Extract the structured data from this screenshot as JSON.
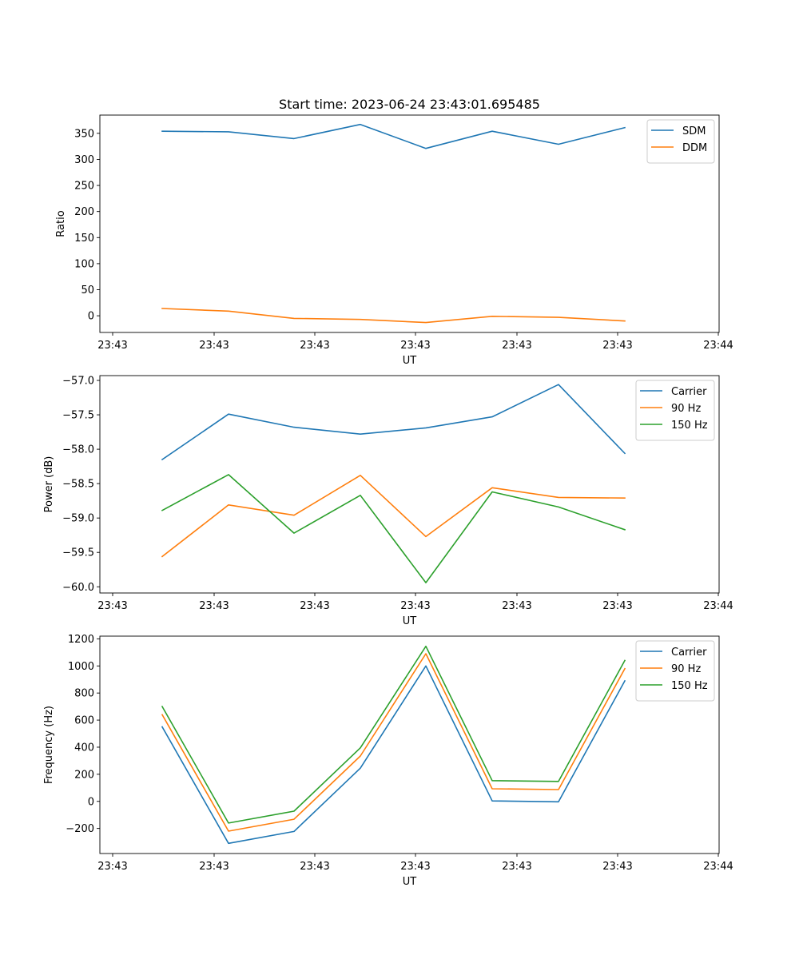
{
  "figure": {
    "title": "Start time: 2023-06-24 23:43:01.695485"
  },
  "chart_data": [
    {
      "type": "line",
      "title": "Start time: 2023-06-24 23:43:01.695485",
      "xlabel": "UT",
      "ylabel": "Ratio",
      "x_tick_labels": [
        "23:43",
        "23:43",
        "23:43",
        "23:43",
        "23:43",
        "23:43",
        "23:43"
      ],
      "x_tick_last_label": "23:44",
      "ylim": [
        -32,
        385
      ],
      "yticks": [
        0,
        50,
        100,
        150,
        200,
        250,
        300,
        350
      ],
      "y_tick_labels": [
        "0",
        "50",
        "100",
        "150",
        "200",
        "250",
        "300",
        "350"
      ],
      "legend_position": "upper-right",
      "series": [
        {
          "name": "SDM",
          "color": "#1f77b4",
          "values": [
            354,
            353,
            340,
            367,
            321,
            354,
            329,
            361
          ]
        },
        {
          "name": "DDM",
          "color": "#ff7f0e",
          "values": [
            14,
            9,
            -5,
            -7,
            -13,
            -1,
            -3,
            -10
          ]
        }
      ]
    },
    {
      "type": "line",
      "title": "",
      "xlabel": "UT",
      "ylabel": "Power (dB)",
      "x_tick_labels": [
        "23:43",
        "23:43",
        "23:43",
        "23:43",
        "23:43",
        "23:43",
        "23:43"
      ],
      "x_tick_last_label": "23:44",
      "ylim": [
        -60.09,
        -56.93
      ],
      "yticks": [
        -60.0,
        -59.5,
        -59.0,
        -58.5,
        -58.0,
        -57.5,
        -57.0
      ],
      "y_tick_labels": [
        "−60.0",
        "−59.5",
        "−59.0",
        "−58.5",
        "−58.0",
        "−57.5",
        "−57.0"
      ],
      "legend_position": "upper-right",
      "series": [
        {
          "name": "Carrier",
          "color": "#1f77b4",
          "values": [
            -58.15,
            -57.49,
            -57.68,
            -57.78,
            -57.69,
            -57.53,
            -57.06,
            -58.06
          ]
        },
        {
          "name": "90 Hz",
          "color": "#ff7f0e",
          "values": [
            -59.56,
            -58.81,
            -58.96,
            -58.38,
            -59.27,
            -58.56,
            -58.7,
            -58.71
          ]
        },
        {
          "name": "150 Hz",
          "color": "#2ca02c",
          "values": [
            -58.89,
            -58.37,
            -59.22,
            -58.67,
            -59.94,
            -58.62,
            -58.84,
            -59.17
          ]
        }
      ]
    },
    {
      "type": "line",
      "title": "",
      "xlabel": "UT",
      "ylabel": "Frequency (Hz)",
      "x_tick_labels": [
        "23:43",
        "23:43",
        "23:43",
        "23:43",
        "23:43",
        "23:43",
        "23:43"
      ],
      "x_tick_last_label": "23:44",
      "ylim": [
        -385,
        1220
      ],
      "yticks": [
        -200,
        0,
        200,
        400,
        600,
        800,
        1000,
        1200
      ],
      "y_tick_labels": [
        "−200",
        "0",
        "200",
        "400",
        "600",
        "800",
        "1000",
        "1200"
      ],
      "legend_position": "upper-right",
      "series": [
        {
          "name": "Carrier",
          "color": "#1f77b4",
          "values": [
            550,
            -310,
            -222,
            245,
            1000,
            3,
            -3,
            890
          ]
        },
        {
          "name": "90 Hz",
          "color": "#ff7f0e",
          "values": [
            640,
            -220,
            -132,
            335,
            1090,
            93,
            87,
            980
          ]
        },
        {
          "name": "150 Hz",
          "color": "#2ca02c",
          "values": [
            700,
            -160,
            -72,
            395,
            1145,
            153,
            147,
            1040
          ]
        }
      ]
    }
  ]
}
